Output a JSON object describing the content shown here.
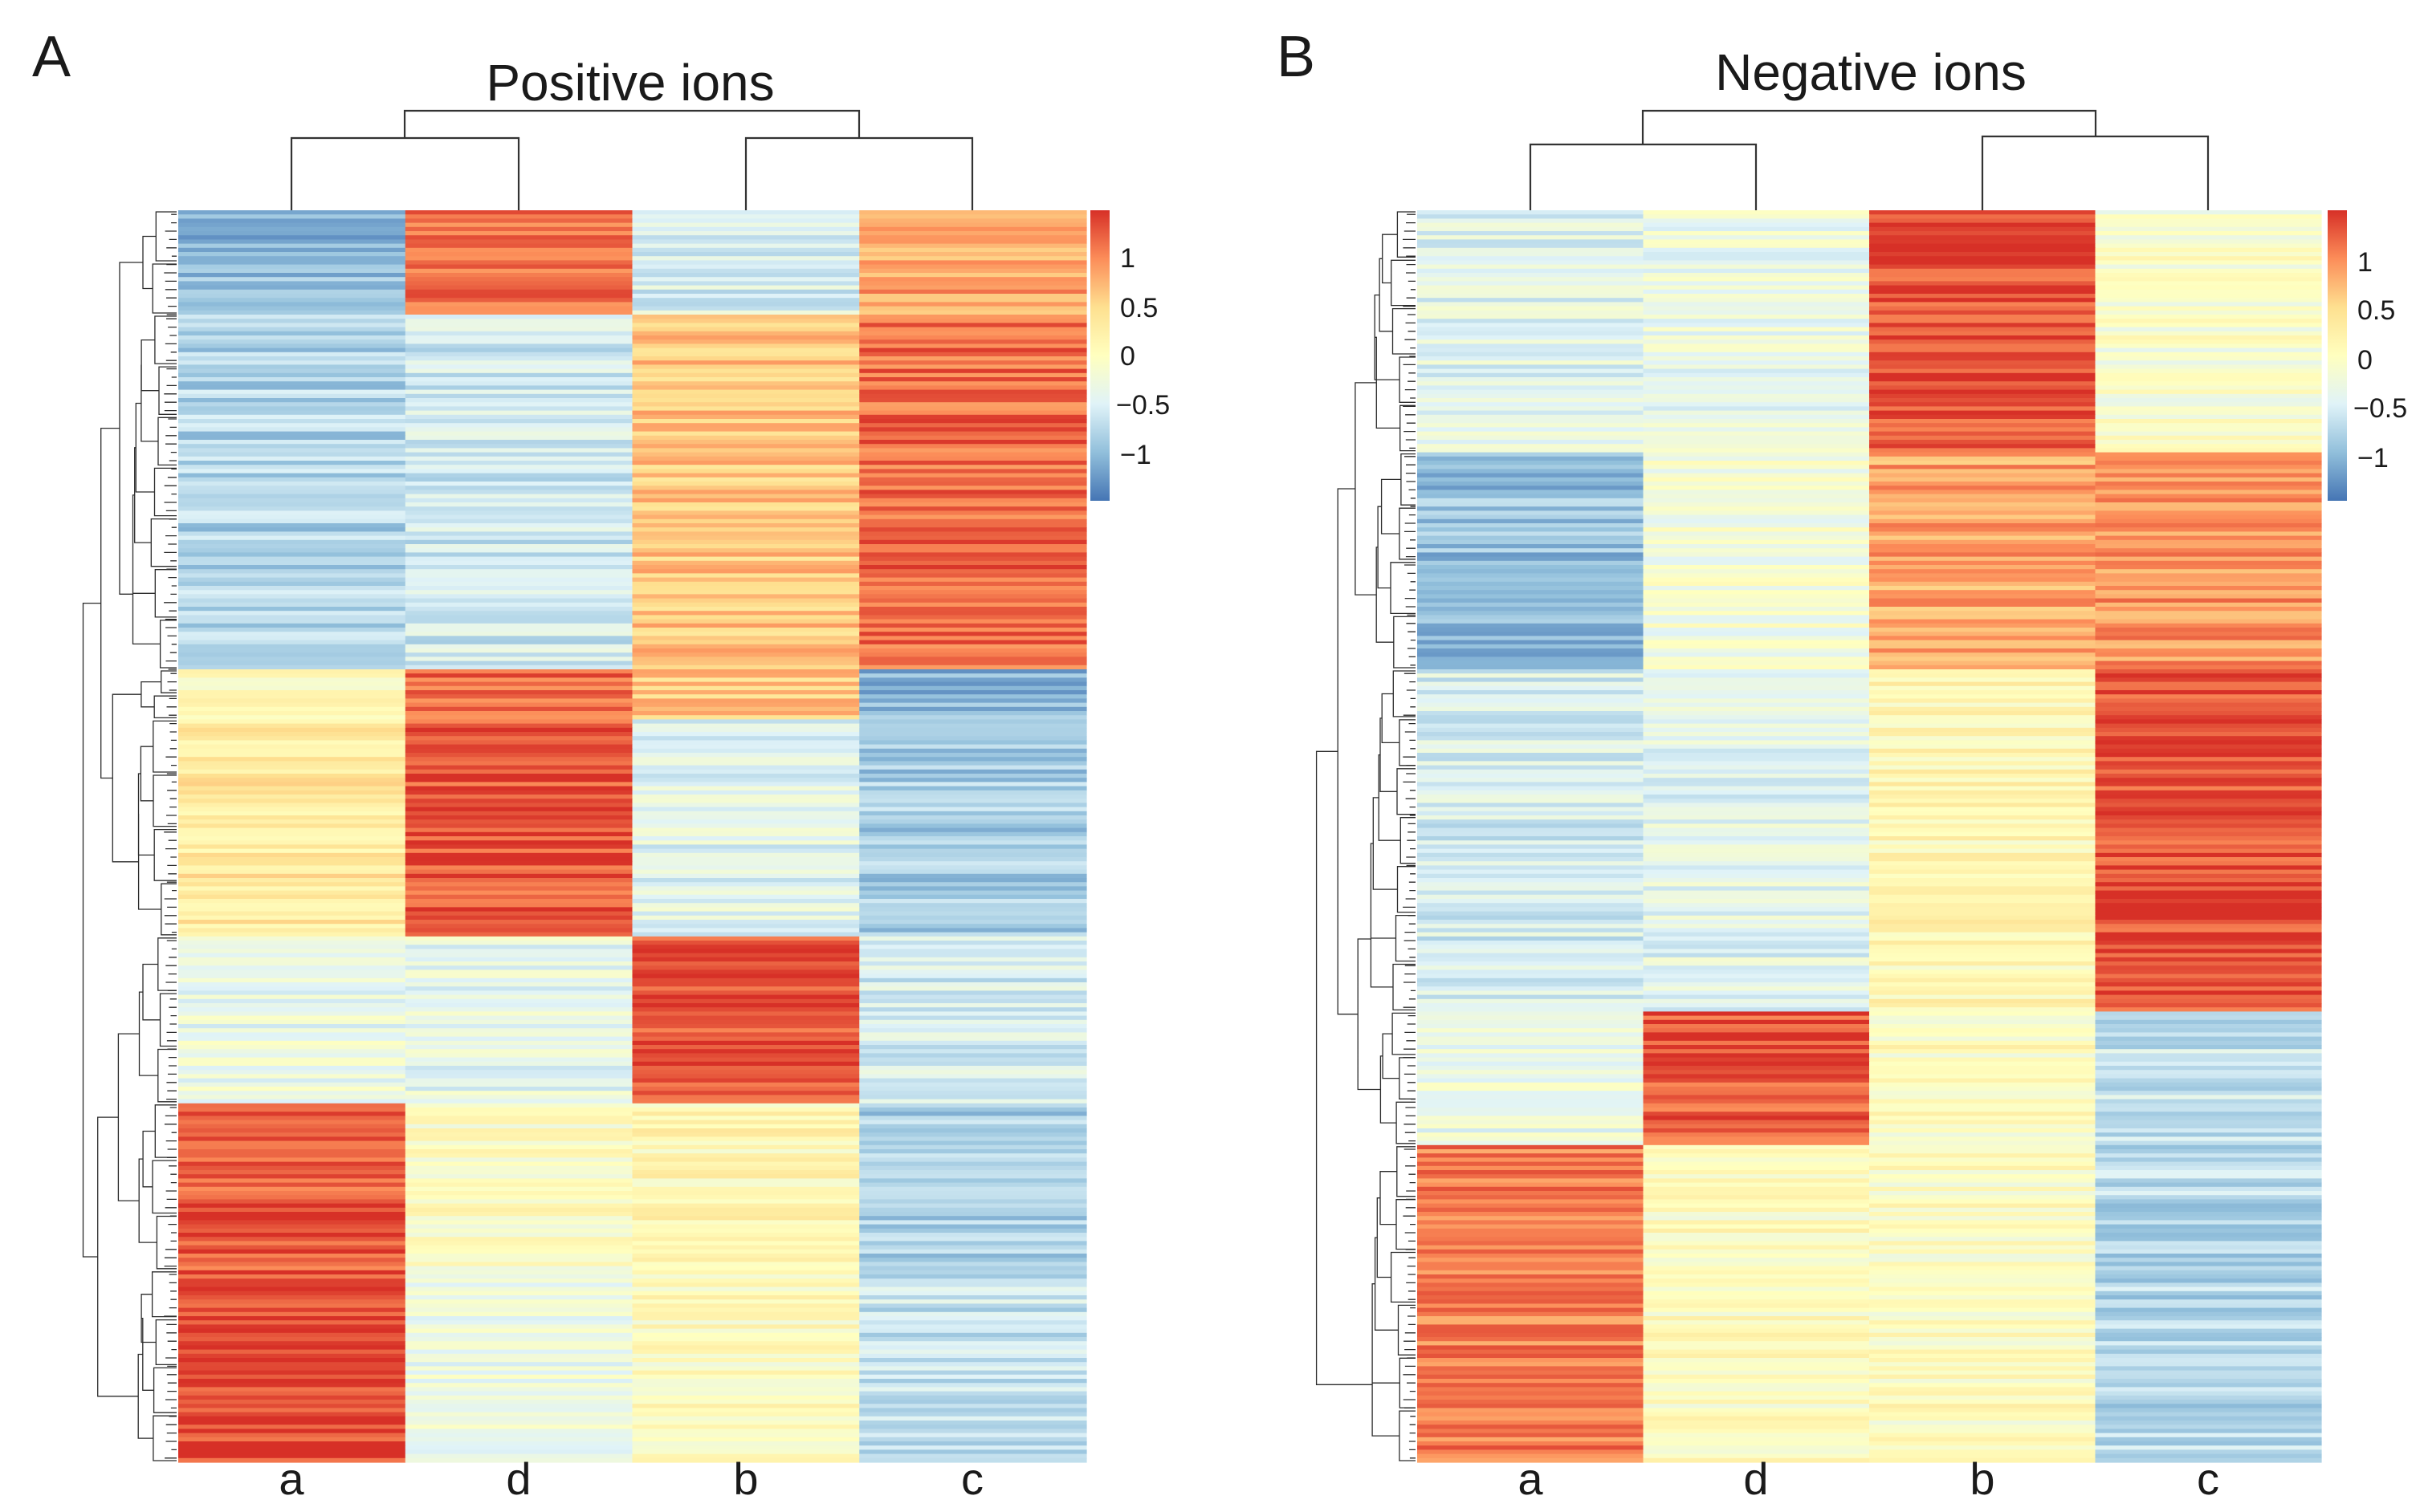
{
  "figure": {
    "panels": [
      "A",
      "B"
    ]
  },
  "chart_data": [
    {
      "type": "heatmap",
      "panel_label": "A",
      "title": "Positive ions",
      "columns": [
        "a",
        "d",
        "b",
        "c"
      ],
      "row_count": 300,
      "column_dendrogram": [
        [
          "a",
          "d"
        ],
        [
          "b",
          "c"
        ]
      ],
      "colorbar": {
        "ticks": [
          1,
          0.5,
          0,
          -0.5,
          -1
        ],
        "tick_labels": [
          "1",
          "0.5",
          "0",
          "−0.5",
          "−1"
        ],
        "range": [
          -1.4,
          1.4
        ],
        "colors": [
          "#4575b4",
          "#91bfdb",
          "#e0f3f8",
          "#ffffbf",
          "#fee090",
          "#fc8d59",
          "#d73027"
        ]
      },
      "row_blocks": [
        {
          "rows": 25,
          "values": [
            -0.95,
            1.1,
            -0.5,
            0.8
          ]
        },
        {
          "rows": 85,
          "values": [
            -0.75,
            -0.55,
            0.6,
            1.1
          ]
        },
        {
          "rows": 12,
          "values": [
            0.1,
            1.1,
            0.6,
            -1.0
          ]
        },
        {
          "rows": 52,
          "values": [
            0.3,
            1.2,
            -0.4,
            -0.8
          ]
        },
        {
          "rows": 40,
          "values": [
            -0.3,
            -0.35,
            1.25,
            -0.5
          ]
        },
        {
          "rows": 40,
          "values": [
            1.2,
            0.0,
            0.1,
            -0.8
          ]
        },
        {
          "rows": 46,
          "values": [
            1.3,
            -0.3,
            0.0,
            -0.6
          ]
        }
      ]
    },
    {
      "type": "heatmap",
      "panel_label": "B",
      "title": "Negative ions",
      "columns": [
        "a",
        "d",
        "b",
        "c"
      ],
      "row_count": 300,
      "column_dendrogram": [
        [
          "a",
          "d"
        ],
        [
          "b",
          "c"
        ]
      ],
      "colorbar": {
        "ticks": [
          1,
          0.5,
          0,
          -0.5,
          -1
        ],
        "tick_labels": [
          "1",
          "0.5",
          "0",
          "−0.5",
          "−1"
        ],
        "range": [
          -1.4,
          1.4
        ],
        "colors": [
          "#4575b4",
          "#91bfdb",
          "#e0f3f8",
          "#ffffbf",
          "#fee090",
          "#fc8d59",
          "#d73027"
        ]
      },
      "row_blocks": [
        {
          "rows": 58,
          "values": [
            -0.4,
            -0.3,
            1.25,
            -0.1
          ]
        },
        {
          "rows": 52,
          "values": [
            -0.9,
            -0.2,
            0.8,
            0.9
          ]
        },
        {
          "rows": 82,
          "values": [
            -0.5,
            -0.4,
            0.1,
            1.25
          ]
        },
        {
          "rows": 32,
          "values": [
            -0.3,
            1.2,
            0.0,
            -0.6
          ]
        },
        {
          "rows": 76,
          "values": [
            1.0,
            0.0,
            0.0,
            -0.7
          ]
        }
      ]
    }
  ]
}
